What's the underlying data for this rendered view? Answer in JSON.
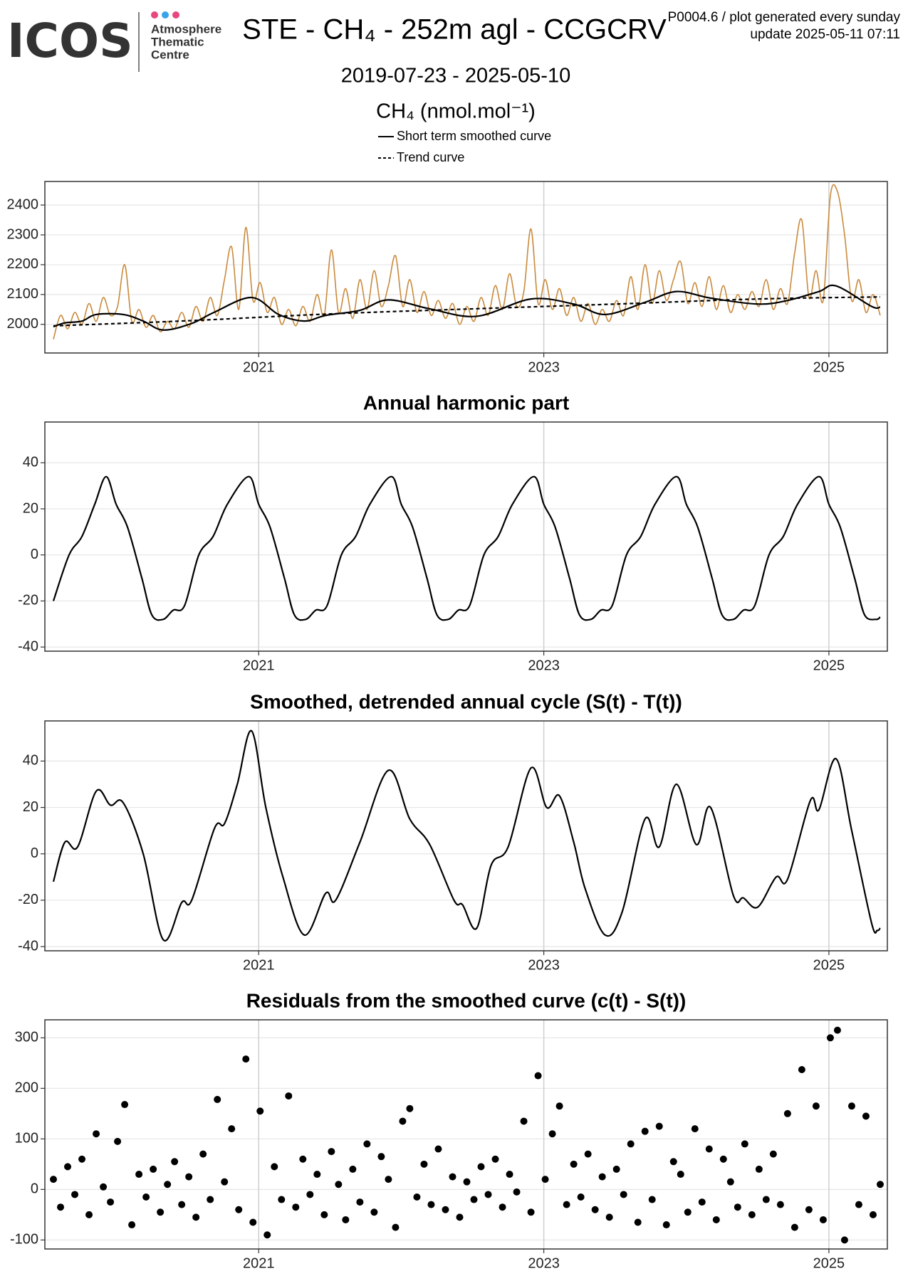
{
  "header": {
    "logo": "ICOS",
    "org": [
      "Atmosphere",
      "Thematic",
      "Centre"
    ],
    "title": "STE - CH₄ - 252m agl - CCGCRV",
    "note": "P0004.6 / plot generated every sunday",
    "update": "update  2025-05-11 07:11",
    "period": "2019-07-23 - 2025-05-10"
  },
  "chart_data": [
    {
      "type": "line",
      "ylabel": "CH₄ (nmol.mol⁻¹)",
      "xlim": [
        2019.5,
        2025.41
      ],
      "xticks": [
        2021,
        2023,
        2025
      ],
      "ylim": [
        1904,
        2479
      ],
      "yticks": [
        2000,
        2100,
        2200,
        2300,
        2400
      ],
      "grid": true,
      "series": [
        {
          "color": "#c98a3c",
          "x": [
            2019.56,
            2019.61,
            2019.66,
            2019.71,
            2019.76,
            2019.81,
            2019.86,
            2019.91,
            2019.96,
            2020.01,
            2020.06,
            2020.11,
            2020.16,
            2020.21,
            2020.26,
            2020.31,
            2020.36,
            2020.41,
            2020.46,
            2020.51,
            2020.56,
            2020.61,
            2020.66,
            2020.71,
            2020.76,
            2020.81,
            2020.86,
            2020.91,
            2020.96,
            2021.01,
            2021.06,
            2021.11,
            2021.16,
            2021.21,
            2021.26,
            2021.31,
            2021.36,
            2021.41,
            2021.46,
            2021.51,
            2021.56,
            2021.61,
            2021.66,
            2021.71,
            2021.76,
            2021.81,
            2021.86,
            2021.91,
            2021.96,
            2022.01,
            2022.06,
            2022.11,
            2022.16,
            2022.21,
            2022.26,
            2022.31,
            2022.36,
            2022.41,
            2022.46,
            2022.51,
            2022.56,
            2022.61,
            2022.66,
            2022.71,
            2022.76,
            2022.81,
            2022.86,
            2022.91,
            2022.96,
            2023.01,
            2023.06,
            2023.11,
            2023.16,
            2023.21,
            2023.26,
            2023.31,
            2023.36,
            2023.41,
            2023.46,
            2023.51,
            2023.56,
            2023.61,
            2023.66,
            2023.71,
            2023.76,
            2023.81,
            2023.86,
            2023.91,
            2023.96,
            2024.01,
            2024.06,
            2024.11,
            2024.16,
            2024.21,
            2024.26,
            2024.31,
            2024.36,
            2024.41,
            2024.46,
            2024.51,
            2024.56,
            2024.61,
            2024.66,
            2024.71,
            2024.76,
            2024.81,
            2024.86,
            2024.91,
            2024.96,
            2025.01,
            2025.06,
            2025.11,
            2025.16,
            2025.21,
            2025.26,
            2025.31,
            2025.36
          ],
          "values": [
            1950,
            2030,
            1985,
            2040,
            2000,
            2070,
            2010,
            2090,
            2030,
            2060,
            2200,
            2010,
            2050,
            1990,
            2030,
            1975,
            2010,
            1985,
            2040,
            1990,
            2060,
            2010,
            2090,
            2030,
            2150,
            2260,
            2050,
            2325,
            2080,
            2140,
            2040,
            2090,
            2000,
            2050,
            1995,
            2060,
            2010,
            2100,
            2030,
            2250,
            2040,
            2120,
            2020,
            2150,
            2050,
            2180,
            2060,
            2130,
            2230,
            2060,
            2150,
            2040,
            2110,
            2030,
            2080,
            2020,
            2070,
            2000,
            2060,
            2010,
            2090,
            2030,
            2130,
            2050,
            2170,
            2060,
            2110,
            2320,
            2070,
            2150,
            2050,
            2120,
            2030,
            2090,
            2010,
            2070,
            2000,
            2050,
            2010,
            2080,
            2030,
            2160,
            2050,
            2200,
            2070,
            2180,
            2080,
            2150,
            2210,
            2070,
            2140,
            2060,
            2160,
            2050,
            2130,
            2040,
            2100,
            2050,
            2110,
            2060,
            2150,
            2050,
            2120,
            2070,
            2240,
            2350,
            2090,
            2180,
            2080,
            2430,
            2445,
            2300,
            2080,
            2150,
            2040,
            2100,
            2030
          ]
        },
        {
          "name": "Short term smoothed curve",
          "color": "#000000",
          "x": [
            2019.56,
            2019.64,
            2019.76,
            2019.86,
            2020.05,
            2020.19,
            2020.33,
            2020.53,
            2020.69,
            2020.95,
            2021.14,
            2021.32,
            2021.47,
            2021.71,
            2021.91,
            2022.2,
            2022.53,
            2022.91,
            2023.21,
            2023.43,
            2023.71,
            2023.93,
            2024.17,
            2024.5,
            2024.71,
            2024.93,
            2025.05,
            2025.3,
            2025.36
          ],
          "values": [
            1992,
            2005,
            2011,
            2033,
            2033,
            2011,
            1981,
            2003,
            2041,
            2090,
            2033,
            2011,
            2030,
            2047,
            2082,
            2052,
            2027,
            2085,
            2068,
            2033,
            2074,
            2110,
            2088,
            2068,
            2080,
            2110,
            2129,
            2060,
            2058
          ]
        },
        {
          "name": "Trend curve",
          "color": "#000000",
          "dash": true,
          "x": [
            2019.56,
            2020.5,
            2021.5,
            2022.5,
            2023.5,
            2024.5,
            2025.36
          ],
          "values": [
            1995,
            2012,
            2035,
            2052,
            2068,
            2085,
            2092
          ]
        }
      ]
    },
    {
      "type": "line",
      "title": "Annual harmonic part",
      "xlim": [
        2019.5,
        2025.41
      ],
      "xticks": [
        2021,
        2023,
        2025
      ],
      "ylim": [
        -41.8,
        57.7
      ],
      "yticks": [
        -40,
        -20,
        0,
        20,
        40
      ],
      "grid": true,
      "series": [
        {
          "color": "#000000",
          "x": [
            2019.56,
            2019.67,
            2019.76,
            2019.85,
            2019.93,
            2020.0,
            2020.08,
            2020.18,
            2020.25,
            2020.33,
            2020.4,
            2020.48,
            2020.58,
            2020.68,
            2020.78,
            2020.93,
            2021.0,
            2021.08,
            2021.18,
            2021.25,
            2021.33,
            2021.4,
            2021.48,
            2021.58,
            2021.68,
            2021.78,
            2021.93,
            2022.0,
            2022.08,
            2022.18,
            2022.25,
            2022.33,
            2022.4,
            2022.48,
            2022.58,
            2022.68,
            2022.78,
            2022.93,
            2023.0,
            2023.08,
            2023.18,
            2023.25,
            2023.33,
            2023.4,
            2023.48,
            2023.58,
            2023.68,
            2023.78,
            2023.93,
            2024.0,
            2024.08,
            2024.18,
            2024.25,
            2024.33,
            2024.4,
            2024.48,
            2024.58,
            2024.68,
            2024.78,
            2024.93,
            2025.0,
            2025.08,
            2025.18,
            2025.25,
            2025.33,
            2025.36
          ],
          "values": [
            -20,
            0,
            8,
            22,
            34,
            22,
            12,
            -10,
            -26,
            -28,
            -24,
            -22,
            0,
            8,
            22,
            34,
            22,
            12,
            -10,
            -26,
            -28,
            -24,
            -22,
            0,
            8,
            22,
            34,
            22,
            12,
            -10,
            -26,
            -28,
            -24,
            -22,
            0,
            8,
            22,
            34,
            22,
            12,
            -10,
            -26,
            -28,
            -24,
            -22,
            0,
            8,
            22,
            34,
            22,
            12,
            -10,
            -26,
            -28,
            -24,
            -22,
            0,
            8,
            22,
            34,
            22,
            12,
            -10,
            -26,
            -28,
            -27
          ]
        }
      ]
    },
    {
      "type": "line",
      "title": "Smoothed, detrended annual cycle (S(t) - T(t))",
      "xlim": [
        2019.5,
        2025.41
      ],
      "xticks": [
        2021,
        2023,
        2025
      ],
      "ylim": [
        -41.8,
        57.3
      ],
      "yticks": [
        -40,
        -20,
        0,
        20,
        40
      ],
      "grid": true,
      "series": [
        {
          "color": "#000000",
          "x": [
            2019.56,
            2019.64,
            2019.73,
            2019.86,
            2019.96,
            2020.05,
            2020.19,
            2020.33,
            2020.46,
            2020.53,
            2020.69,
            2020.76,
            2020.85,
            2020.95,
            2021.05,
            2021.17,
            2021.32,
            2021.47,
            2021.54,
            2021.71,
            2021.91,
            2022.06,
            2022.2,
            2022.37,
            2022.43,
            2022.53,
            2022.63,
            2022.75,
            2022.91,
            2023.02,
            2023.11,
            2023.21,
            2023.29,
            2023.43,
            2023.55,
            2023.71,
            2023.81,
            2023.93,
            2024.07,
            2024.17,
            2024.33,
            2024.4,
            2024.5,
            2024.63,
            2024.71,
            2024.87,
            2024.93,
            2025.05,
            2025.16,
            2025.3,
            2025.34,
            2025.36
          ],
          "values": [
            -12,
            5,
            3,
            27,
            21,
            22,
            0,
            -37,
            -21,
            -20,
            11,
            13,
            30,
            53,
            20,
            -10,
            -35,
            -17,
            -20,
            5,
            36,
            15,
            4,
            -20,
            -22,
            -32,
            -5,
            3,
            37,
            20,
            25,
            5,
            -15,
            -35,
            -25,
            15,
            3,
            30,
            4,
            20,
            -18,
            -19,
            -23,
            -10,
            -11,
            23,
            19,
            41,
            10,
            -30,
            -33,
            -32
          ]
        }
      ]
    },
    {
      "type": "scatter",
      "title": "Residuals from the smoothed curve (c(t) - S(t))",
      "xlim": [
        2019.5,
        2025.41
      ],
      "xticks": [
        2021,
        2023,
        2025
      ],
      "ylim": [
        -117.8,
        335.6
      ],
      "yticks": [
        -100,
        0,
        100,
        200,
        300
      ],
      "grid": true,
      "color": "#000000",
      "x": [
        2019.56,
        2019.61,
        2019.66,
        2019.71,
        2019.76,
        2019.81,
        2019.86,
        2019.91,
        2019.96,
        2020.01,
        2020.06,
        2020.11,
        2020.16,
        2020.21,
        2020.26,
        2020.31,
        2020.36,
        2020.41,
        2020.46,
        2020.51,
        2020.56,
        2020.61,
        2020.66,
        2020.71,
        2020.76,
        2020.81,
        2020.86,
        2020.91,
        2020.96,
        2021.01,
        2021.06,
        2021.11,
        2021.16,
        2021.21,
        2021.26,
        2021.31,
        2021.36,
        2021.41,
        2021.46,
        2021.51,
        2021.56,
        2021.61,
        2021.66,
        2021.71,
        2021.76,
        2021.81,
        2021.86,
        2021.91,
        2021.96,
        2022.01,
        2022.06,
        2022.11,
        2022.16,
        2022.21,
        2022.26,
        2022.31,
        2022.36,
        2022.41,
        2022.46,
        2022.51,
        2022.56,
        2022.61,
        2022.66,
        2022.71,
        2022.76,
        2022.81,
        2022.86,
        2022.91,
        2022.96,
        2023.01,
        2023.06,
        2023.11,
        2023.16,
        2023.21,
        2023.26,
        2023.31,
        2023.36,
        2023.41,
        2023.46,
        2023.51,
        2023.56,
        2023.61,
        2023.66,
        2023.71,
        2023.76,
        2023.81,
        2023.86,
        2023.91,
        2023.96,
        2024.01,
        2024.06,
        2024.11,
        2024.16,
        2024.21,
        2024.26,
        2024.31,
        2024.36,
        2024.41,
        2024.46,
        2024.51,
        2024.56,
        2024.61,
        2024.66,
        2024.71,
        2024.76,
        2024.81,
        2024.86,
        2024.91,
        2024.96,
        2025.01,
        2025.06,
        2025.11,
        2025.16,
        2025.21,
        2025.26,
        2025.31,
        2025.36
      ],
      "values": [
        20,
        -35,
        45,
        -10,
        60,
        -50,
        110,
        5,
        -25,
        95,
        168,
        -70,
        30,
        -15,
        40,
        -45,
        10,
        55,
        -30,
        25,
        -55,
        70,
        -20,
        178,
        15,
        120,
        -40,
        258,
        -65,
        155,
        -90,
        45,
        -20,
        185,
        -35,
        60,
        -10,
        30,
        -50,
        75,
        10,
        -60,
        40,
        -25,
        90,
        -45,
        65,
        20,
        -75,
        135,
        160,
        -15,
        50,
        -30,
        80,
        -40,
        25,
        -55,
        15,
        -20,
        45,
        -10,
        60,
        -35,
        30,
        -5,
        135,
        -45,
        225,
        20,
        110,
        165,
        -30,
        50,
        -15,
        70,
        -40,
        25,
        -55,
        40,
        -10,
        90,
        -65,
        115,
        -20,
        125,
        -70,
        55,
        30,
        -45,
        120,
        -25,
        80,
        -60,
        60,
        15,
        -35,
        90,
        -50,
        40,
        -20,
        70,
        -30,
        150,
        -75,
        237,
        -40,
        165,
        -60,
        300,
        315,
        -100,
        165,
        -30,
        145,
        -50,
        10
      ]
    }
  ]
}
